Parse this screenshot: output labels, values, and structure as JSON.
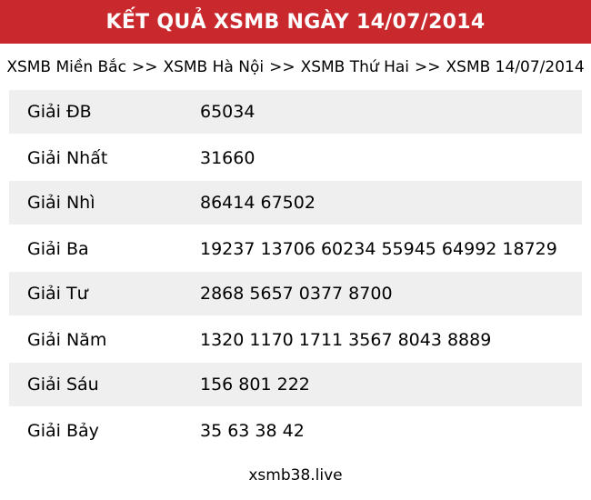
{
  "header": {
    "title": "KẾT QUẢ XSMB NGÀY 14/07/2014",
    "bg_color": "#c9282d",
    "text_color": "#ffffff"
  },
  "breadcrumb": {
    "separator": ">>",
    "items": [
      "XSMB Miền Bắc",
      "XSMB Hà Nội",
      "XSMB Thứ Hai",
      "XSMB 14/07/2014"
    ]
  },
  "results_table": {
    "stripe_color": "#efefef",
    "rows": [
      {
        "label": "Giải ĐB",
        "numbers": "65034"
      },
      {
        "label": "Giải Nhất",
        "numbers": "31660"
      },
      {
        "label": "Giải Nhì",
        "numbers": "86414 67502"
      },
      {
        "label": "Giải Ba",
        "numbers": "19237 13706 60234 55945 64992 18729"
      },
      {
        "label": "Giải Tư",
        "numbers": "2868 5657 0377 8700"
      },
      {
        "label": "Giải Năm",
        "numbers": "1320 1170 1711 3567 8043 8889"
      },
      {
        "label": "Giải Sáu",
        "numbers": "156 801 222"
      },
      {
        "label": "Giải Bảy",
        "numbers": "35 63 38 42"
      }
    ]
  },
  "footer": {
    "site_name": "xsmb38.live"
  }
}
